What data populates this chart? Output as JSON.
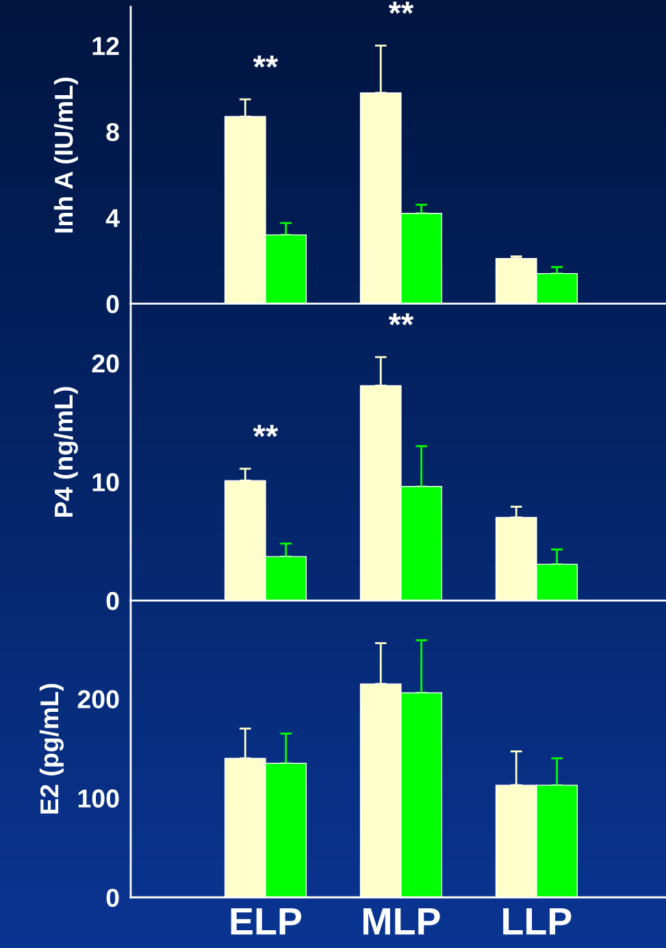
{
  "chart_data": [
    {
      "type": "bar",
      "categories": [
        null,
        null,
        null
      ],
      "ylabel": "Inh A (IU/mL)",
      "ylim": [
        0,
        13.8
      ],
      "yticks": [
        0,
        4,
        8,
        12
      ],
      "tick_labels": "y",
      "series": [
        {
          "color": "#ffffcc",
          "values": [
            8.7,
            9.8,
            2.1
          ],
          "errors": [
            [
              8.7,
              9.5
            ],
            [
              9.8,
              12.0
            ],
            [
              2.1,
              2.2
            ]
          ]
        },
        {
          "color": "#00ff00",
          "values": [
            3.2,
            4.2,
            1.4
          ],
          "errors": [
            [
              3.2,
              3.75
            ],
            [
              4.2,
              4.6
            ],
            [
              1.4,
              1.7
            ]
          ]
        }
      ],
      "annotations": [
        "**",
        "**"
      ]
    },
    {
      "type": "bar",
      "categories": [
        null,
        null,
        null
      ],
      "ylabel": "P4 (ng/mL)",
      "ylim": [
        0,
        25
      ],
      "yticks": [
        0,
        10,
        20
      ],
      "tick_labels": "y",
      "series": [
        {
          "color": "#ffffcc",
          "values": [
            10.1,
            18.1,
            7.0
          ],
          "errors": [
            [
              10.1,
              11.1
            ],
            [
              18.1,
              20.5
            ],
            [
              7.0,
              7.9
            ]
          ]
        },
        {
          "color": "#00ff00",
          "values": [
            3.7,
            9.6,
            3.05
          ],
          "errors": [
            [
              3.7,
              4.8
            ],
            [
              9.6,
              13.0
            ],
            [
              3.05,
              4.3
            ]
          ]
        }
      ],
      "annotations": [
        "**",
        "**"
      ]
    },
    {
      "type": "bar",
      "categories": [
        "ELP",
        "MLP",
        "LLP"
      ],
      "ylabel": "E2 (pg/mL)",
      "ylim": [
        0,
        299
      ],
      "yticks": [
        0,
        100,
        200
      ],
      "series": [
        {
          "color": "#ffffcc",
          "values": [
            140,
            215,
            113
          ],
          "errors": [
            [
              140,
              170
            ],
            [
              215,
              256
            ],
            [
              113,
              147
            ]
          ]
        },
        {
          "color": "#00ff00",
          "values": [
            135,
            206,
            113
          ],
          "errors": [
            [
              135,
              165
            ],
            [
              206,
              259
            ],
            [
              113,
              140
            ]
          ]
        }
      ]
    }
  ]
}
